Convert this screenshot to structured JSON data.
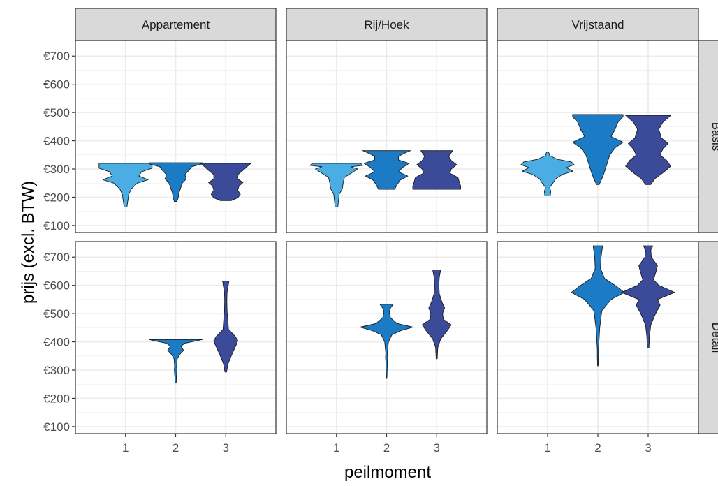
{
  "chart_data": {
    "type": "violin",
    "xlabel": "peilmoment",
    "ylabel": "prijs (excl. BTW)",
    "columns": [
      "Appartement",
      "Rij/Hoek",
      "Vrijstaand"
    ],
    "rows": [
      "Basis",
      "Detail"
    ],
    "x_categories": [
      "1",
      "2",
      "3"
    ],
    "y_ticks": [
      100,
      200,
      300,
      400,
      500,
      600,
      700
    ],
    "y_tick_labels": [
      "€100",
      "€200",
      "€300",
      "€400",
      "€500",
      "€600",
      "€700"
    ],
    "ylim": [
      75,
      755
    ],
    "grid": true,
    "fill_colors": {
      "1": "#4aaee4",
      "2": "#1b7bc4",
      "3": "#3b4b99"
    },
    "violins": [
      {
        "row": "Basis",
        "column": "Appartement",
        "x": "1",
        "range": [
          165,
          320
        ],
        "profile": [
          [
            165,
            0.05
          ],
          [
            190,
            0.09
          ],
          [
            210,
            0.12
          ],
          [
            230,
            0.22
          ],
          [
            250,
            0.45
          ],
          [
            262,
            0.85
          ],
          [
            275,
            0.5
          ],
          [
            290,
            0.6
          ],
          [
            303,
            1.0
          ],
          [
            313,
            1.0
          ],
          [
            320,
            1.0
          ]
        ]
      },
      {
        "row": "Basis",
        "column": "Appartement",
        "x": "2",
        "range": [
          185,
          322
        ],
        "profile": [
          [
            185,
            0.05
          ],
          [
            200,
            0.1
          ],
          [
            215,
            0.12
          ],
          [
            230,
            0.18
          ],
          [
            250,
            0.25
          ],
          [
            265,
            0.4
          ],
          [
            280,
            0.35
          ],
          [
            295,
            0.5
          ],
          [
            308,
            0.6
          ],
          [
            318,
            1.0
          ],
          [
            322,
            1.0
          ]
        ]
      },
      {
        "row": "Basis",
        "column": "Appartement",
        "x": "3",
        "range": [
          188,
          320
        ],
        "profile": [
          [
            188,
            0.2
          ],
          [
            198,
            0.45
          ],
          [
            210,
            0.55
          ],
          [
            225,
            0.45
          ],
          [
            240,
            0.5
          ],
          [
            252,
            0.65
          ],
          [
            265,
            0.45
          ],
          [
            280,
            0.45
          ],
          [
            295,
            0.65
          ],
          [
            308,
            0.8
          ],
          [
            320,
            0.95
          ]
        ]
      },
      {
        "row": "Basis",
        "column": "Rij/Hoek",
        "x": "1",
        "range": [
          165,
          320
        ],
        "profile": [
          [
            165,
            0.05
          ],
          [
            190,
            0.08
          ],
          [
            210,
            0.1
          ],
          [
            230,
            0.22
          ],
          [
            250,
            0.25
          ],
          [
            270,
            0.3
          ],
          [
            285,
            0.55
          ],
          [
            300,
            0.8
          ],
          [
            308,
            0.55
          ],
          [
            313,
            1.0
          ],
          [
            320,
            0.9
          ]
        ]
      },
      {
        "row": "Basis",
        "column": "Rij/Hoek",
        "x": "2",
        "range": [
          228,
          365
        ],
        "profile": [
          [
            228,
            0.3
          ],
          [
            245,
            0.4
          ],
          [
            260,
            0.5
          ],
          [
            275,
            0.8
          ],
          [
            290,
            0.45
          ],
          [
            305,
            0.6
          ],
          [
            320,
            0.85
          ],
          [
            332,
            0.45
          ],
          [
            345,
            0.45
          ],
          [
            355,
            0.65
          ],
          [
            365,
            0.9
          ]
        ]
      },
      {
        "row": "Basis",
        "column": "Rij/Hoek",
        "x": "3",
        "range": [
          228,
          365
        ],
        "profile": [
          [
            228,
            0.9
          ],
          [
            240,
            0.9
          ],
          [
            255,
            0.85
          ],
          [
            270,
            0.8
          ],
          [
            285,
            0.5
          ],
          [
            300,
            0.55
          ],
          [
            315,
            0.75
          ],
          [
            330,
            0.55
          ],
          [
            345,
            0.45
          ],
          [
            358,
            0.55
          ],
          [
            365,
            0.6
          ]
        ]
      },
      {
        "row": "Basis",
        "column": "Vrijstaand",
        "x": "1",
        "range": [
          205,
          360
        ],
        "profile": [
          [
            205,
            0.1
          ],
          [
            220,
            0.12
          ],
          [
            235,
            0.08
          ],
          [
            250,
            0.2
          ],
          [
            265,
            0.3
          ],
          [
            280,
            0.55
          ],
          [
            292,
            0.95
          ],
          [
            305,
            0.7
          ],
          [
            315,
            1.0
          ],
          [
            325,
            0.9
          ],
          [
            335,
            0.35
          ],
          [
            348,
            0.08
          ],
          [
            360,
            0.04
          ]
        ]
      },
      {
        "row": "Basis",
        "column": "Vrijstaand",
        "x": "2",
        "range": [
          245,
          493
        ],
        "profile": [
          [
            245,
            0.05
          ],
          [
            265,
            0.15
          ],
          [
            290,
            0.25
          ],
          [
            320,
            0.35
          ],
          [
            350,
            0.45
          ],
          [
            375,
            0.65
          ],
          [
            395,
            0.95
          ],
          [
            415,
            0.5
          ],
          [
            440,
            0.65
          ],
          [
            465,
            0.75
          ],
          [
            485,
            0.95
          ],
          [
            493,
            0.95
          ]
        ]
      },
      {
        "row": "Basis",
        "column": "Vrijstaand",
        "x": "3",
        "range": [
          245,
          490
        ],
        "profile": [
          [
            245,
            0.1
          ],
          [
            265,
            0.25
          ],
          [
            290,
            0.6
          ],
          [
            310,
            0.85
          ],
          [
            330,
            0.7
          ],
          [
            350,
            0.45
          ],
          [
            370,
            0.55
          ],
          [
            390,
            0.75
          ],
          [
            410,
            0.5
          ],
          [
            440,
            0.4
          ],
          [
            465,
            0.55
          ],
          [
            490,
            0.85
          ]
        ]
      },
      {
        "row": "Detail",
        "column": "Appartement",
        "x": "2",
        "range": [
          255,
          408
        ],
        "profile": [
          [
            255,
            0.02
          ],
          [
            275,
            0.03
          ],
          [
            300,
            0.05
          ],
          [
            315,
            0.04
          ],
          [
            340,
            0.06
          ],
          [
            355,
            0.15
          ],
          [
            370,
            0.3
          ],
          [
            385,
            0.2
          ],
          [
            395,
            0.35
          ],
          [
            402,
            0.7
          ],
          [
            408,
            1.0
          ]
        ]
      },
      {
        "row": "Detail",
        "column": "Appartement",
        "x": "3",
        "range": [
          293,
          615
        ],
        "profile": [
          [
            293,
            0.03
          ],
          [
            320,
            0.08
          ],
          [
            345,
            0.18
          ],
          [
            370,
            0.3
          ],
          [
            390,
            0.4
          ],
          [
            405,
            0.45
          ],
          [
            420,
            0.35
          ],
          [
            445,
            0.1
          ],
          [
            475,
            0.08
          ],
          [
            510,
            0.05
          ],
          [
            545,
            0.04
          ],
          [
            575,
            0.05
          ],
          [
            598,
            0.09
          ],
          [
            615,
            0.12
          ]
        ]
      },
      {
        "row": "Detail",
        "column": "Rij/Hoek",
        "x": "2",
        "range": [
          270,
          533
        ],
        "profile": [
          [
            270,
            0.01
          ],
          [
            300,
            0.02
          ],
          [
            330,
            0.03
          ],
          [
            345,
            0.04
          ],
          [
            360,
            0.03
          ],
          [
            400,
            0.07
          ],
          [
            425,
            0.2
          ],
          [
            440,
            0.55
          ],
          [
            452,
            1.0
          ],
          [
            465,
            0.4
          ],
          [
            485,
            0.15
          ],
          [
            505,
            0.1
          ],
          [
            520,
            0.15
          ],
          [
            533,
            0.25
          ]
        ]
      },
      {
        "row": "Detail",
        "column": "Rij/Hoek",
        "x": "3",
        "range": [
          340,
          655
        ],
        "profile": [
          [
            340,
            0.02
          ],
          [
            380,
            0.04
          ],
          [
            410,
            0.15
          ],
          [
            440,
            0.4
          ],
          [
            460,
            0.55
          ],
          [
            480,
            0.25
          ],
          [
            500,
            0.22
          ],
          [
            520,
            0.3
          ],
          [
            540,
            0.2
          ],
          [
            570,
            0.1
          ],
          [
            600,
            0.08
          ],
          [
            630,
            0.1
          ],
          [
            655,
            0.15
          ]
        ]
      },
      {
        "row": "Detail",
        "column": "Vrijstaand",
        "x": "2",
        "range": [
          315,
          740
        ],
        "profile": [
          [
            315,
            0.01
          ],
          [
            350,
            0.02
          ],
          [
            375,
            0.02
          ],
          [
            400,
            0.04
          ],
          [
            450,
            0.07
          ],
          [
            510,
            0.15
          ],
          [
            550,
            0.5
          ],
          [
            575,
            1.0
          ],
          [
            600,
            0.65
          ],
          [
            625,
            0.25
          ],
          [
            660,
            0.1
          ],
          [
            700,
            0.12
          ],
          [
            740,
            0.18
          ]
        ]
      },
      {
        "row": "Detail",
        "column": "Vrijstaand",
        "x": "3",
        "range": [
          378,
          740
        ],
        "profile": [
          [
            378,
            0.03
          ],
          [
            420,
            0.05
          ],
          [
            460,
            0.1
          ],
          [
            500,
            0.28
          ],
          [
            530,
            0.45
          ],
          [
            550,
            0.35
          ],
          [
            575,
            1.0
          ],
          [
            600,
            0.4
          ],
          [
            620,
            0.2
          ],
          [
            650,
            0.3
          ],
          [
            670,
            0.35
          ],
          [
            700,
            0.12
          ],
          [
            725,
            0.1
          ],
          [
            740,
            0.18
          ]
        ]
      }
    ]
  }
}
